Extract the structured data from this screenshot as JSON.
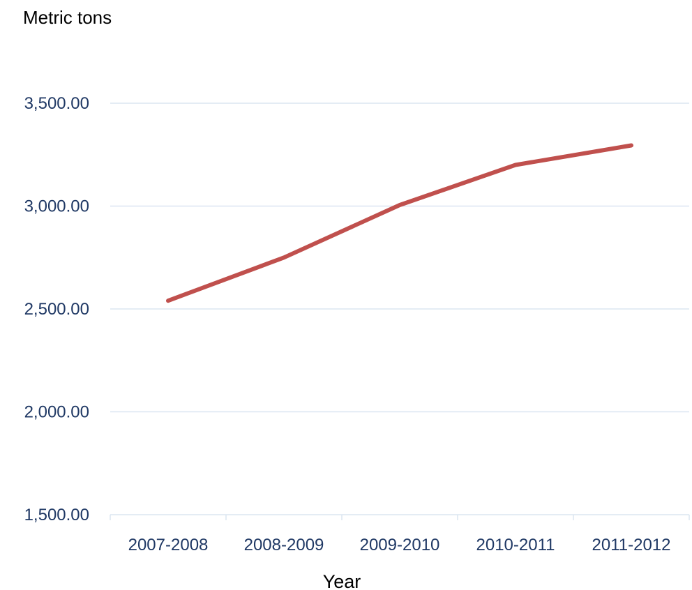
{
  "chart_data": {
    "type": "line",
    "title": "",
    "ylabel": "Metric tons",
    "xlabel": "Year",
    "categories": [
      "2007-2008",
      "2008-2009",
      "2009-2010",
      "2010-2011",
      "2011-2012"
    ],
    "series": [
      {
        "values": [
          2540,
          2750,
          3005,
          3200,
          3295
        ],
        "color": "#c0504d"
      }
    ],
    "ylim": [
      1500,
      3500
    ],
    "yticks": [
      1500,
      2000,
      2500,
      3000,
      3500
    ],
    "ytick_labels": [
      "1,500.00",
      "2,000.00",
      "2,500.00",
      "3,000.00",
      "3,500.00"
    ],
    "grid": true,
    "legend": "none",
    "colors": {
      "tick_text": "#1f3864",
      "gridline": "#dbe5f1",
      "axis": "#dbe5f1"
    }
  }
}
